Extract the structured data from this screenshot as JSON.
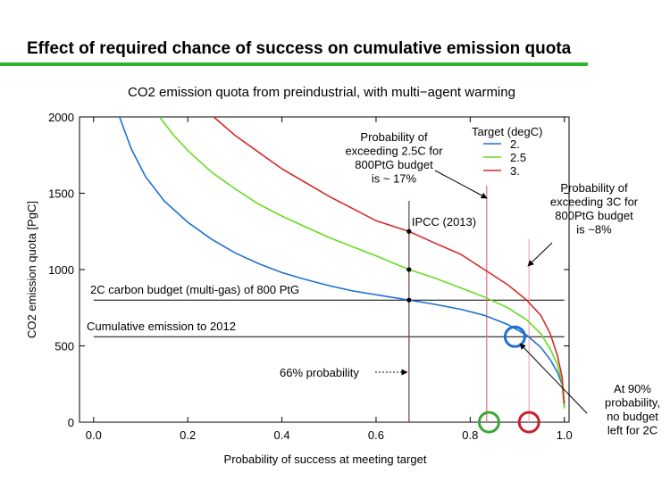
{
  "slide": {
    "title": "Effect of required chance of success on cumulative emission quota",
    "accent": "#2db42d"
  },
  "chart_data": {
    "type": "line",
    "title": "CO2 emission quota from preindustrial, with multi−agent warming",
    "xlabel": "Probability of success at meeting target",
    "ylabel": "CO2 emission quota [PgC]",
    "xlim": [
      -0.03,
      1.01
    ],
    "ylim": [
      0,
      2000
    ],
    "xticks": [
      0.0,
      0.2,
      0.4,
      0.6,
      0.8,
      1.0
    ],
    "xtick_labels": [
      "0.0",
      "0.2",
      "0.4",
      "0.6",
      "0.8",
      "1.0"
    ],
    "yticks": [
      0,
      500,
      1000,
      1500,
      2000
    ],
    "ytick_labels": [
      "0",
      "500",
      "1000",
      "1500",
      "2000"
    ],
    "legend": {
      "title": "Target (degC)",
      "position": "top-right",
      "entries": [
        "2.",
        "2.5",
        "3."
      ]
    },
    "series": [
      {
        "name": "2.",
        "color": "#1f6fd0",
        "x": [
          0.055,
          0.08,
          0.11,
          0.15,
          0.2,
          0.25,
          0.3,
          0.35,
          0.4,
          0.45,
          0.5,
          0.55,
          0.6,
          0.67,
          0.72,
          0.78,
          0.83,
          0.88,
          0.92,
          0.95,
          0.97,
          0.985,
          0.995,
          1.0
        ],
        "y": [
          2000,
          1790,
          1610,
          1450,
          1310,
          1200,
          1110,
          1040,
          980,
          935,
          895,
          860,
          835,
          800,
          775,
          740,
          700,
          640,
          570,
          490,
          410,
          330,
          250,
          100
        ]
      },
      {
        "name": "2.5",
        "color": "#66dd22",
        "x": [
          0.14,
          0.17,
          0.2,
          0.25,
          0.3,
          0.35,
          0.4,
          0.45,
          0.5,
          0.55,
          0.6,
          0.67,
          0.72,
          0.78,
          0.83,
          0.88,
          0.92,
          0.95,
          0.97,
          0.985,
          0.995,
          1.0
        ],
        "y": [
          2000,
          1880,
          1780,
          1640,
          1530,
          1430,
          1350,
          1280,
          1210,
          1150,
          1090,
          1000,
          950,
          880,
          820,
          750,
          670,
          580,
          480,
          380,
          260,
          90
        ]
      },
      {
        "name": "3.",
        "color": "#d42a2a",
        "x": [
          0.255,
          0.3,
          0.35,
          0.4,
          0.45,
          0.5,
          0.55,
          0.6,
          0.67,
          0.72,
          0.78,
          0.83,
          0.88,
          0.92,
          0.95,
          0.97,
          0.985,
          0.995,
          1.0
        ],
        "y": [
          2000,
          1880,
          1770,
          1660,
          1570,
          1480,
          1400,
          1320,
          1250,
          1180,
          1100,
          1000,
          900,
          800,
          700,
          580,
          440,
          300,
          120
        ]
      }
    ],
    "hlines": [
      {
        "y": 800,
        "label": "2C carbon budget (multi-gas) of 800 PtG"
      },
      {
        "y": 560,
        "label": "Cumulative emission to 2012"
      }
    ],
    "markers": [
      {
        "x": 0.67,
        "y": 1250
      },
      {
        "x": 0.67,
        "y": 1000
      },
      {
        "x": 0.67,
        "y": 800
      }
    ],
    "vlines": [
      {
        "x": 0.67,
        "ymax": 1450,
        "color": "#7a4a55"
      },
      {
        "x": 0.835,
        "ymax": 1550,
        "color": "#e07a8a"
      },
      {
        "x": 0.925,
        "ymax": 1200,
        "color": "#f0b0bc"
      }
    ],
    "circles": [
      {
        "x": 0.895,
        "y": 560,
        "color": "#1f6fd0"
      },
      {
        "x": 0.84,
        "y": 0,
        "color": "#3aa535"
      },
      {
        "x": 0.925,
        "y": 0,
        "color": "#c8202a"
      }
    ],
    "annotations": {
      "ipcc": "IPCC (2013)",
      "prob66": "66% probability",
      "exceed25": [
        "Probability of",
        "exceeding 2.5C for",
        "800PtG budget",
        "is ~ 17%"
      ],
      "exceed3": [
        "Probability of",
        "exceeding 3C for",
        "800PtG budget",
        "is ~8%"
      ],
      "at90": [
        "At 90%",
        "probability,",
        "no budget",
        "left for 2C"
      ]
    }
  }
}
